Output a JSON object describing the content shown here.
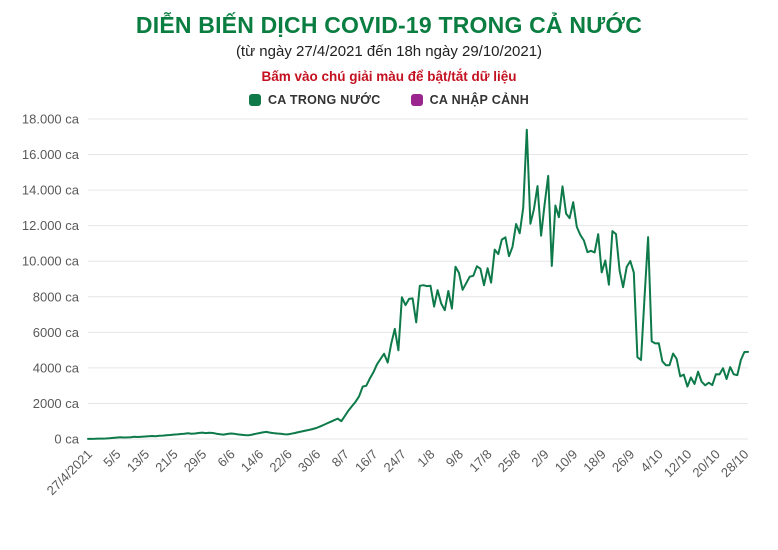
{
  "header": {
    "title": "DIỄN BIẾN DỊCH COVID-19 TRONG CẢ NƯỚC",
    "subtitle": "(từ ngày 27/4/2021 đến 18h ngày 29/10/2021)",
    "hint": "Bấm vào chú giải màu để bật/tắt dữ liệu"
  },
  "colors": {
    "title_green": "#0a7d40",
    "hint_red": "#c41120",
    "grid": "#e6e6e6",
    "axis_text": "#595959"
  },
  "chart_data": {
    "type": "line",
    "title": "DIỄN BIẾN DỊCH COVID-19 TRONG CẢ NƯỚC",
    "subtitle": "(từ ngày 27/4/2021 đến 18h ngày 29/10/2021)",
    "xlabel": "",
    "ylabel": "",
    "ylim": [
      0,
      18000
    ],
    "grid": "horizontal",
    "legend_position": "top",
    "series": [
      {
        "name": "CA TRONG NƯỚC",
        "color": "#0e7a4a",
        "visible": true,
        "values": [
          5,
          8,
          14,
          20,
          25,
          30,
          40,
          60,
          80,
          95,
          85,
          90,
          100,
          125,
          110,
          130,
          140,
          160,
          170,
          155,
          180,
          190,
          210,
          225,
          250,
          260,
          280,
          300,
          320,
          290,
          310,
          340,
          360,
          330,
          350,
          340,
          300,
          270,
          250,
          280,
          310,
          290,
          260,
          240,
          220,
          210,
          250,
          290,
          330,
          370,
          400,
          360,
          330,
          310,
          290,
          270,
          260,
          300,
          340,
          390,
          430,
          470,
          510,
          560,
          620,
          700,
          790,
          880,
          970,
          1060,
          1150,
          1000,
          1300,
          1600,
          1850,
          2100,
          2400,
          2950,
          3000,
          3400,
          3750,
          4200,
          4500,
          4800,
          4300,
          5357,
          6194,
          4992,
          7968,
          7531,
          7882,
          7911,
          6559,
          8620,
          8650,
          8600,
          8620,
          7445,
          8377,
          7623,
          7244,
          8324,
          7334,
          9690,
          9340,
          8390,
          8766,
          9128,
          9180,
          9716,
          9580,
          8652,
          9605,
          8800,
          10654,
          10400,
          11214,
          11346,
          10280,
          10811,
          12096,
          11575,
          13000,
          17400,
          12103,
          12920,
          14224,
          11434,
          13197,
          14800,
          9731,
          13137,
          12477,
          14208,
          12680,
          12420,
          13321,
          11932,
          11478,
          11168,
          10508,
          10585,
          10489,
          11521,
          9373,
          10040,
          8681,
          11692,
          11527,
          9472,
          8537,
          9682,
          10011,
          9362,
          4600,
          4449,
          7940,
          11356,
          5490,
          5376,
          5383,
          4363,
          4151,
          4150,
          4806,
          4513,
          3528,
          3619,
          2949,
          3461,
          3092,
          3787,
          3221,
          3018,
          3168,
          3034,
          3646,
          3636,
          3985,
          3373,
          4045,
          3639,
          3595,
          4452,
          4892,
          4899
        ]
      },
      {
        "name": "CA NHẬP CẢNH",
        "color": "#9a258f",
        "visible": false,
        "values": []
      }
    ],
    "x_ticks": [
      {
        "index": 0,
        "label": "27/4/2021"
      },
      {
        "index": 8,
        "label": "5/5"
      },
      {
        "index": 16,
        "label": "13/5"
      },
      {
        "index": 24,
        "label": "21/5"
      },
      {
        "index": 32,
        "label": "29/5"
      },
      {
        "index": 40,
        "label": "6/6"
      },
      {
        "index": 48,
        "label": "14/6"
      },
      {
        "index": 56,
        "label": "22/6"
      },
      {
        "index": 64,
        "label": "30/6"
      },
      {
        "index": 72,
        "label": "8/7"
      },
      {
        "index": 80,
        "label": "16/7"
      },
      {
        "index": 88,
        "label": "24/7"
      },
      {
        "index": 96,
        "label": "1/8"
      },
      {
        "index": 104,
        "label": "9/8"
      },
      {
        "index": 112,
        "label": "17/8"
      },
      {
        "index": 120,
        "label": "25/8"
      },
      {
        "index": 128,
        "label": "2/9"
      },
      {
        "index": 136,
        "label": "10/9"
      },
      {
        "index": 144,
        "label": "18/9"
      },
      {
        "index": 152,
        "label": "26/9"
      },
      {
        "index": 160,
        "label": "4/10"
      },
      {
        "index": 168,
        "label": "12/10"
      },
      {
        "index": 176,
        "label": "20/10"
      },
      {
        "index": 184,
        "label": "28/10"
      }
    ],
    "y_ticks": [
      {
        "value": 0,
        "label": "0 ca"
      },
      {
        "value": 2000,
        "label": "2000 ca"
      },
      {
        "value": 4000,
        "label": "4000 ca"
      },
      {
        "value": 6000,
        "label": "6000 ca"
      },
      {
        "value": 8000,
        "label": "8000 ca"
      },
      {
        "value": 10000,
        "label": "10.000 ca"
      },
      {
        "value": 12000,
        "label": "12.000 ca"
      },
      {
        "value": 14000,
        "label": "14.000 ca"
      },
      {
        "value": 16000,
        "label": "16.000 ca"
      },
      {
        "value": 18000,
        "label": "18.000 ca"
      }
    ]
  }
}
